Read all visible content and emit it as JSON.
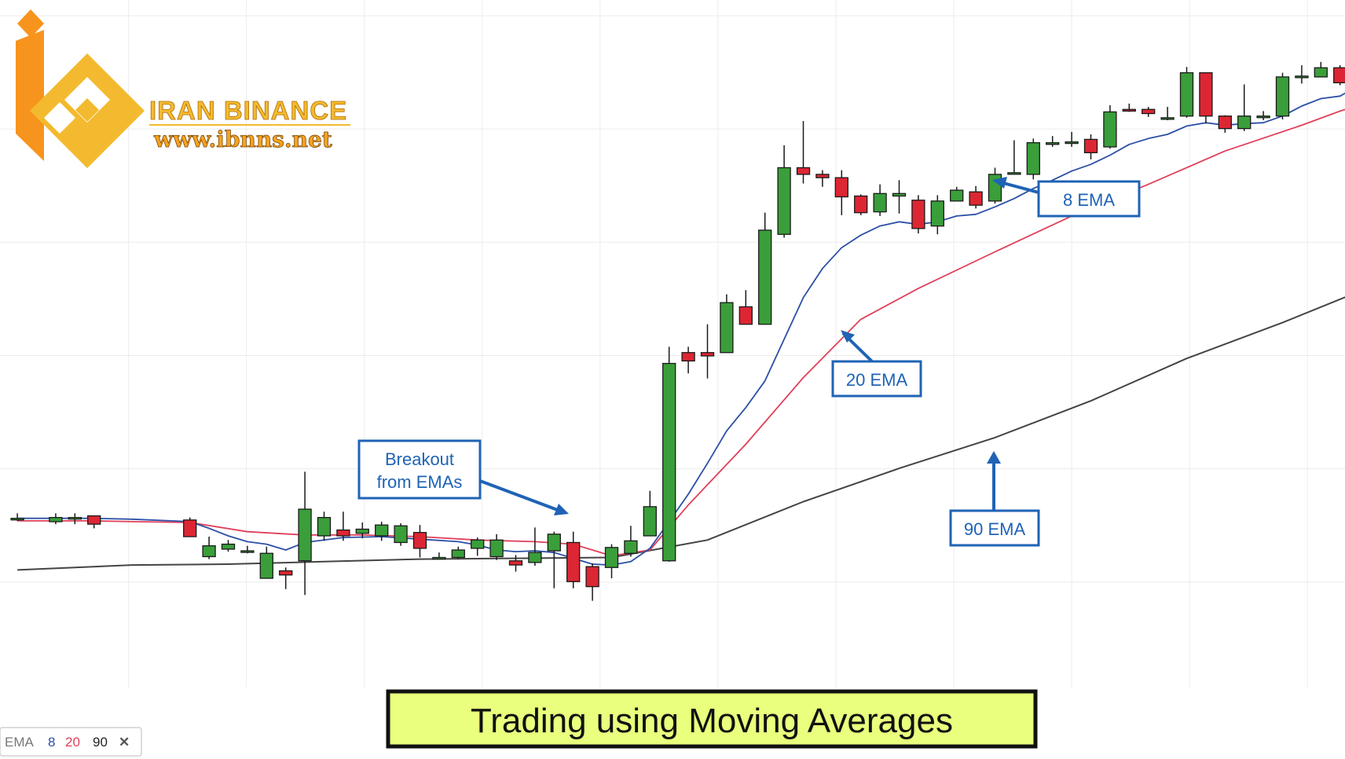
{
  "logo": {
    "brand": "IRAN BINANCE",
    "url": "www.ibnns.net",
    "colors": {
      "orange": "#f7941d",
      "gold": "#f3ba2f"
    }
  },
  "title": "Trading using Moving Averages",
  "legend": {
    "label": "EMA",
    "periods": [
      "8",
      "20",
      "90"
    ],
    "close_glyph": "✕",
    "colors": [
      "#2c4fa6",
      "#e0405a",
      "#222222"
    ]
  },
  "callouts": {
    "ema8": "8 EMA",
    "ema20": "20 EMA",
    "ema90": "90 EMA",
    "breakout": [
      "Breakout",
      "from EMAs"
    ]
  },
  "chart_data": {
    "type": "candlestick",
    "title": "Trading using Moving Averages",
    "xlabel": "",
    "ylabel": "",
    "ylim": [
      0,
      100
    ],
    "grid": true,
    "colors": {
      "up": "#3a9e3a",
      "down": "#dd2633",
      "ema8": "#2c4fa6",
      "ema20": "#e0405a",
      "ema90": "#444444",
      "callout": "#1f63b5",
      "title_bg": "#e9ff7d"
    },
    "candles": [
      [
        -1,
        27.9,
        28.0,
        28.6,
        27.7
      ],
      [
        1,
        27.6,
        28.1,
        28.6,
        27.3
      ],
      [
        2,
        28.1,
        28.1,
        28.6,
        27.3
      ],
      [
        3,
        28.3,
        27.3,
        28.3,
        26.8
      ],
      [
        8,
        27.8,
        25.8,
        28.1,
        25.8
      ],
      [
        9,
        23.4,
        24.7,
        25.8,
        23.1
      ],
      [
        10,
        24.3,
        24.9,
        25.4,
        24.0
      ],
      [
        11,
        24.1,
        24.1,
        24.7,
        23.8
      ],
      [
        12,
        20.8,
        23.8,
        24.6,
        20.8
      ],
      [
        13,
        21.7,
        21.2,
        22.1,
        19.5
      ],
      [
        14,
        22.9,
        29.1,
        33.6,
        18.8
      ],
      [
        15,
        25.9,
        28.1,
        28.8,
        25.3
      ],
      [
        16,
        26.6,
        25.9,
        28.8,
        25.3
      ],
      [
        17,
        26.2,
        26.7,
        27.5,
        25.6
      ],
      [
        18,
        25.9,
        27.2,
        27.6,
        25.3
      ],
      [
        19,
        25.1,
        27.1,
        27.4,
        24.7
      ],
      [
        20,
        26.3,
        24.4,
        27.2,
        23.3
      ],
      [
        21,
        23.3,
        23.3,
        23.9,
        23.3
      ],
      [
        22,
        23.3,
        24.2,
        24.6,
        23.1
      ],
      [
        23,
        24.4,
        25.4,
        25.7,
        23.5
      ],
      [
        24,
        23.4,
        25.4,
        26.1,
        23.0
      ],
      [
        25,
        22.9,
        22.4,
        23.6,
        21.6
      ],
      [
        26,
        22.7,
        23.9,
        26.9,
        22.3
      ],
      [
        27,
        24.1,
        26.1,
        26.4,
        19.6
      ],
      [
        28,
        25.1,
        20.4,
        26.4,
        19.6
      ],
      [
        29,
        22.2,
        19.8,
        22.6,
        18.1
      ],
      [
        30,
        22.1,
        24.5,
        24.9,
        20.8
      ],
      [
        31,
        23.8,
        25.3,
        27.1,
        23.4
      ],
      [
        32,
        25.9,
        29.4,
        31.3,
        25.9
      ],
      [
        33,
        22.9,
        46.6,
        48.6,
        22.8
      ],
      [
        34,
        47.9,
        46.9,
        48.6,
        45.4
      ],
      [
        35,
        47.9,
        47.5,
        51.3,
        44.8
      ],
      [
        36,
        47.9,
        53.9,
        54.9,
        47.9
      ],
      [
        37,
        53.4,
        51.3,
        55.4,
        51.3
      ],
      [
        38,
        51.3,
        62.6,
        64.7,
        51.3
      ],
      [
        39,
        62.1,
        70.1,
        72.8,
        61.7
      ],
      [
        40,
        70.1,
        69.3,
        75.7,
        68.2
      ],
      [
        41,
        69.3,
        68.9,
        69.8,
        67.8
      ],
      [
        42,
        68.9,
        66.6,
        69.8,
        64.4
      ],
      [
        43,
        66.7,
        64.7,
        66.9,
        64.4
      ],
      [
        44,
        64.8,
        67.0,
        68.1,
        64.3
      ],
      [
        45,
        66.7,
        67.0,
        68.6,
        64.6
      ],
      [
        46,
        66.2,
        62.8,
        66.8,
        62.2
      ],
      [
        47,
        63.1,
        66.1,
        66.8,
        62.1
      ],
      [
        48,
        66.1,
        67.4,
        67.8,
        66.1
      ],
      [
        49,
        67.2,
        65.6,
        67.9,
        65.2
      ],
      [
        50,
        66.1,
        69.3,
        70.1,
        65.8
      ],
      [
        51,
        69.5,
        69.5,
        73.4,
        69.5
      ],
      [
        52,
        69.3,
        73.1,
        73.6,
        68.7
      ],
      [
        53,
        72.9,
        73.1,
        73.9,
        72.6
      ],
      [
        54,
        73.2,
        73.2,
        74.4,
        72.6
      ],
      [
        55,
        73.5,
        71.9,
        74.1,
        71.1
      ],
      [
        56,
        72.6,
        76.8,
        77.6,
        72.4
      ],
      [
        57,
        77.1,
        76.9,
        77.8,
        76.8
      ],
      [
        58,
        77.1,
        76.6,
        77.4,
        76.2
      ],
      [
        59,
        76.1,
        76.1,
        77.4,
        75.8
      ],
      [
        60,
        76.3,
        81.5,
        82.2,
        76.1
      ],
      [
        61,
        81.5,
        76.3,
        81.5,
        75.4
      ],
      [
        62,
        76.3,
        74.8,
        76.4,
        74.3
      ],
      [
        63,
        74.8,
        76.3,
        80.1,
        74.5
      ],
      [
        64,
        76.3,
        76.3,
        76.9,
        75.8
      ],
      [
        65,
        76.3,
        81.0,
        81.5,
        75.9
      ],
      [
        66,
        81.0,
        81.1,
        82.4,
        80.2
      ],
      [
        67,
        81.0,
        82.1,
        82.8,
        81.3
      ],
      [
        68,
        82.1,
        80.3,
        82.4,
        80.0
      ],
      [
        69,
        80.3,
        86.3,
        86.9,
        80.3
      ],
      [
        70,
        86.1,
        86.5,
        87.2,
        85.3
      ],
      [
        71,
        86.1,
        84.2,
        87.3,
        82.8
      ]
    ],
    "series": [
      {
        "name": "8 EMA",
        "x": [
          -1,
          3,
          5,
          8,
          9,
          10,
          11,
          12,
          13,
          14,
          16,
          18,
          20,
          22,
          23,
          24,
          25,
          26,
          27,
          28,
          29,
          30,
          31,
          32,
          33,
          34,
          35,
          36,
          37,
          38,
          39,
          40,
          41,
          42,
          43,
          44,
          45,
          46,
          47,
          48,
          49,
          50,
          51,
          52,
          53,
          54,
          55,
          56,
          57,
          58,
          59,
          60,
          61,
          62,
          63,
          64,
          65,
          66,
          67,
          68,
          69,
          70,
          71
        ],
        "y": [
          28.0,
          28.0,
          27.9,
          27.6,
          26.8,
          25.9,
          25.2,
          24.9,
          24.2,
          25.1,
          25.7,
          25.8,
          25.5,
          25.2,
          24.8,
          24.2,
          24.0,
          24.1,
          23.9,
          23.2,
          22.5,
          22.4,
          22.8,
          24.4,
          27.6,
          30.9,
          34.6,
          38.5,
          41.3,
          44.5,
          49.5,
          54.5,
          58.0,
          60.5,
          62.0,
          63.1,
          63.6,
          63.3,
          63.6,
          64.3,
          64.5,
          65.4,
          66.4,
          67.6,
          68.6,
          69.7,
          70.5,
          71.6,
          72.9,
          73.6,
          74.1,
          75.1,
          75.5,
          75.2,
          75.4,
          75.5,
          76.3,
          77.5,
          78.4,
          78.7,
          80.0,
          81.8,
          82.5
        ]
      },
      {
        "name": "20 EMA",
        "x": [
          -1,
          3,
          5,
          8,
          11,
          14,
          17,
          20,
          23,
          26,
          28,
          30,
          32,
          34,
          37,
          40,
          43,
          46,
          50,
          54,
          58,
          62,
          66,
          68,
          71
        ],
        "y": [
          27.7,
          27.7,
          27.6,
          27.5,
          26.4,
          26.0,
          26.0,
          25.8,
          25.4,
          25.2,
          24.9,
          23.5,
          24.2,
          29.6,
          36.9,
          44.9,
          51.9,
          55.6,
          60.0,
          64.3,
          68.1,
          72.1,
          75.2,
          76.9,
          79.0
        ]
      },
      {
        "name": "90 EMA",
        "x": [
          -1,
          5,
          10,
          15,
          20,
          25,
          30,
          35,
          40,
          45,
          50,
          55,
          60,
          65,
          71
        ],
        "y": [
          21.8,
          22.4,
          22.5,
          22.8,
          23.1,
          23.2,
          23.3,
          25.4,
          30.0,
          34.0,
          37.7,
          42.1,
          47.2,
          51.5,
          57.1
        ]
      }
    ]
  }
}
